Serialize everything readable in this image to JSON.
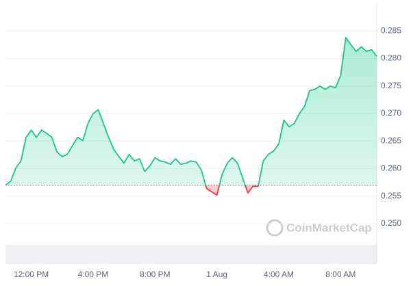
{
  "chart_data": {
    "type": "line",
    "categories": [
      null,
      null,
      null,
      null,
      null,
      "12:00 PM",
      null,
      null,
      null,
      null,
      null,
      null,
      null,
      null,
      null,
      null,
      null,
      "4:00 PM",
      null,
      null,
      null,
      null,
      null,
      null,
      null,
      null,
      null,
      null,
      null,
      "8:00 PM",
      null,
      null,
      null,
      null,
      null,
      null,
      null,
      null,
      null,
      null,
      null,
      "1 Aug",
      null,
      null,
      null,
      null,
      null,
      null,
      null,
      null,
      null,
      null,
      null,
      "4:00 AM",
      null,
      null,
      null,
      null,
      null,
      null,
      null,
      null,
      null,
      null,
      null,
      "8:00 AM",
      null,
      null,
      null,
      null,
      null,
      null,
      null
    ],
    "values": [
      0.257,
      0.2577,
      0.2601,
      0.2614,
      0.2657,
      0.267,
      0.2657,
      0.267,
      0.2664,
      0.2657,
      0.263,
      0.2622,
      0.2626,
      0.2642,
      0.2657,
      0.2651,
      0.2682,
      0.27,
      0.2707,
      0.2682,
      0.2657,
      0.2635,
      0.2622,
      0.261,
      0.2626,
      0.2614,
      0.2618,
      0.2595,
      0.2605,
      0.262,
      0.2614,
      0.2612,
      0.2608,
      0.2618,
      0.2608,
      0.261,
      0.2614,
      0.2612,
      0.2597,
      0.2564,
      0.2558,
      0.2552,
      0.2589,
      0.261,
      0.262,
      0.261,
      0.2583,
      0.2556,
      0.2568,
      0.2568,
      0.2614,
      0.2626,
      0.2632,
      0.2645,
      0.2688,
      0.2676,
      0.2682,
      0.27,
      0.2713,
      0.2742,
      0.2744,
      0.275,
      0.2744,
      0.275,
      0.2747,
      0.2769,
      0.2838,
      0.2825,
      0.2813,
      0.2821,
      0.2813,
      0.2816,
      0.2804
    ],
    "baseline": 0.257,
    "up_color": "#16c784",
    "down_color": "#ea3943",
    "ylim": [
      0.2428,
      0.29
    ],
    "yticks": [
      {
        "value": 0.25,
        "label": "0.250"
      },
      0.255,
      {
        "value": 0.26,
        "label": "0.260"
      },
      0.265,
      {
        "value": 0.27,
        "label": "0.270"
      },
      0.275,
      {
        "value": 0.28,
        "label": "0.280"
      },
      0.285
    ],
    "grid": true,
    "watermark": "CoinMarketCap"
  }
}
